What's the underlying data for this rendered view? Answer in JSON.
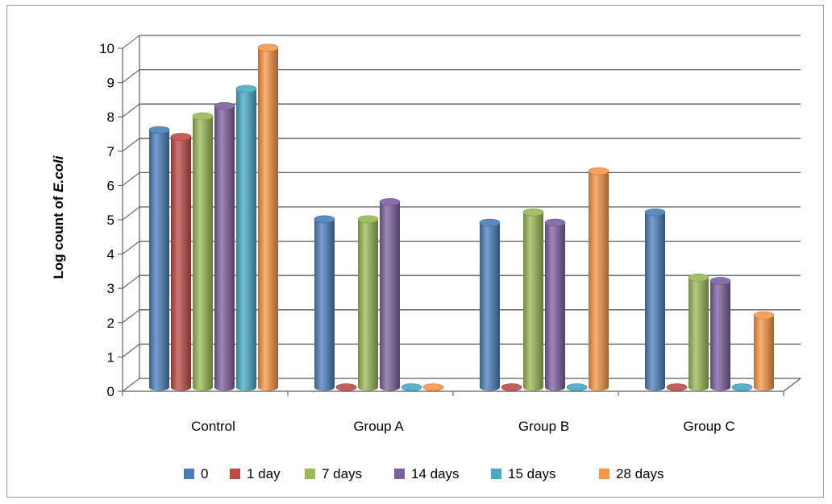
{
  "chart_data": {
    "type": "bar",
    "title": "",
    "xlabel": "",
    "ylabel": "Log count of E.coli",
    "ylabel_parts": [
      "Log count of ",
      "E.coli"
    ],
    "ylim": [
      0,
      10
    ],
    "yticks": [
      "0",
      "1",
      "2",
      "3",
      "4",
      "5",
      "6",
      "7",
      "8",
      "9",
      "10"
    ],
    "grid": true,
    "legend_position": "bottom",
    "categories": [
      "Control",
      "Group A",
      "Group B",
      "Group C"
    ],
    "series": [
      {
        "name": "0",
        "color": "#4a7ebb",
        "values": [
          7.5,
          4.9,
          4.8,
          5.1
        ]
      },
      {
        "name": "1 day",
        "color": "#be4b48",
        "values": [
          7.3,
          0,
          0,
          0
        ]
      },
      {
        "name": "7 days",
        "color": "#98b954",
        "values": [
          7.9,
          4.9,
          5.1,
          3.2
        ]
      },
      {
        "name": "14 days",
        "color": "#7d60a0",
        "values": [
          8.2,
          5.4,
          4.8,
          3.1
        ]
      },
      {
        "name": "15 days",
        "color": "#46aac5",
        "values": [
          8.7,
          0,
          0,
          0
        ]
      },
      {
        "name": "28 days",
        "color": "#f79646",
        "values": [
          9.9,
          0,
          6.3,
          2.1
        ]
      }
    ]
  }
}
